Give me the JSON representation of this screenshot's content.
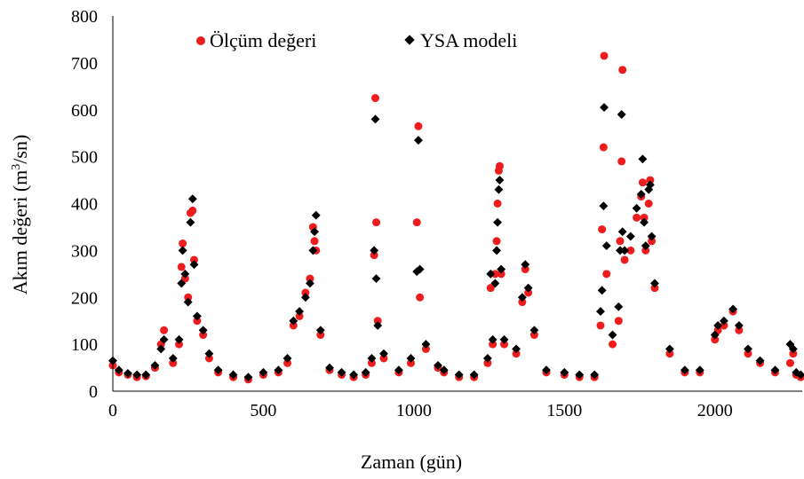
{
  "chart_data": {
    "type": "scatter",
    "title": "",
    "xlabel": "Zaman (gün)",
    "ylabel_main": "Akım değeri (m",
    "ylabel_sup": "3",
    "ylabel_tail": "/sn)",
    "xlim": [
      0,
      2290
    ],
    "ylim": [
      0,
      800
    ],
    "xticks": [
      0,
      500,
      1000,
      1500,
      2000
    ],
    "yticks": [
      0,
      100,
      200,
      300,
      400,
      500,
      600,
      700,
      800
    ],
    "grid": false,
    "legend_position": "top",
    "series": [
      {
        "name": "Ölçüm değeri",
        "marker": "circle",
        "color": "#ee1c1c",
        "points": [
          [
            0,
            55
          ],
          [
            20,
            40
          ],
          [
            50,
            35
          ],
          [
            80,
            30
          ],
          [
            110,
            32
          ],
          [
            140,
            50
          ],
          [
            160,
            100
          ],
          [
            170,
            130
          ],
          [
            200,
            60
          ],
          [
            220,
            100
          ],
          [
            228,
            265
          ],
          [
            232,
            315
          ],
          [
            240,
            240
          ],
          [
            250,
            200
          ],
          [
            258,
            380
          ],
          [
            265,
            385
          ],
          [
            270,
            280
          ],
          [
            280,
            150
          ],
          [
            300,
            120
          ],
          [
            320,
            70
          ],
          [
            350,
            40
          ],
          [
            400,
            30
          ],
          [
            450,
            25
          ],
          [
            500,
            35
          ],
          [
            550,
            40
          ],
          [
            580,
            60
          ],
          [
            600,
            140
          ],
          [
            620,
            160
          ],
          [
            640,
            210
          ],
          [
            655,
            240
          ],
          [
            665,
            350
          ],
          [
            670,
            320
          ],
          [
            675,
            300
          ],
          [
            690,
            120
          ],
          [
            720,
            45
          ],
          [
            760,
            35
          ],
          [
            800,
            30
          ],
          [
            840,
            35
          ],
          [
            860,
            60
          ],
          [
            868,
            290
          ],
          [
            872,
            625
          ],
          [
            875,
            360
          ],
          [
            880,
            150
          ],
          [
            900,
            70
          ],
          [
            950,
            40
          ],
          [
            990,
            60
          ],
          [
            1010,
            360
          ],
          [
            1015,
            565
          ],
          [
            1020,
            200
          ],
          [
            1040,
            90
          ],
          [
            1080,
            50
          ],
          [
            1100,
            40
          ],
          [
            1150,
            30
          ],
          [
            1200,
            30
          ],
          [
            1245,
            60
          ],
          [
            1255,
            220
          ],
          [
            1262,
            100
          ],
          [
            1270,
            250
          ],
          [
            1275,
            320
          ],
          [
            1278,
            400
          ],
          [
            1282,
            470
          ],
          [
            1285,
            480
          ],
          [
            1290,
            250
          ],
          [
            1300,
            100
          ],
          [
            1340,
            80
          ],
          [
            1360,
            190
          ],
          [
            1370,
            260
          ],
          [
            1380,
            210
          ],
          [
            1400,
            120
          ],
          [
            1440,
            40
          ],
          [
            1500,
            35
          ],
          [
            1550,
            30
          ],
          [
            1600,
            30
          ],
          [
            1620,
            140
          ],
          [
            1625,
            345
          ],
          [
            1630,
            520
          ],
          [
            1632,
            715
          ],
          [
            1640,
            250
          ],
          [
            1660,
            100
          ],
          [
            1680,
            150
          ],
          [
            1685,
            320
          ],
          [
            1690,
            490
          ],
          [
            1693,
            685
          ],
          [
            1700,
            280
          ],
          [
            1720,
            300
          ],
          [
            1740,
            370
          ],
          [
            1755,
            415
          ],
          [
            1760,
            445
          ],
          [
            1765,
            370
          ],
          [
            1770,
            300
          ],
          [
            1780,
            400
          ],
          [
            1785,
            450
          ],
          [
            1790,
            320
          ],
          [
            1800,
            220
          ],
          [
            1850,
            80
          ],
          [
            1900,
            40
          ],
          [
            1950,
            40
          ],
          [
            2000,
            110
          ],
          [
            2010,
            130
          ],
          [
            2030,
            140
          ],
          [
            2060,
            170
          ],
          [
            2080,
            130
          ],
          [
            2110,
            80
          ],
          [
            2150,
            60
          ],
          [
            2200,
            40
          ],
          [
            2250,
            60
          ],
          [
            2260,
            80
          ],
          [
            2270,
            35
          ],
          [
            2285,
            30
          ]
        ]
      },
      {
        "name": "YSA modeli",
        "marker": "diamond",
        "color": "#000000",
        "points": [
          [
            0,
            65
          ],
          [
            20,
            45
          ],
          [
            50,
            38
          ],
          [
            80,
            35
          ],
          [
            110,
            35
          ],
          [
            140,
            55
          ],
          [
            160,
            90
          ],
          [
            170,
            110
          ],
          [
            200,
            70
          ],
          [
            220,
            110
          ],
          [
            228,
            230
          ],
          [
            232,
            300
          ],
          [
            240,
            250
          ],
          [
            250,
            190
          ],
          [
            258,
            360
          ],
          [
            265,
            410
          ],
          [
            270,
            270
          ],
          [
            280,
            160
          ],
          [
            300,
            130
          ],
          [
            320,
            80
          ],
          [
            350,
            45
          ],
          [
            400,
            35
          ],
          [
            450,
            30
          ],
          [
            500,
            40
          ],
          [
            550,
            45
          ],
          [
            580,
            70
          ],
          [
            600,
            150
          ],
          [
            620,
            170
          ],
          [
            640,
            200
          ],
          [
            655,
            230
          ],
          [
            665,
            300
          ],
          [
            670,
            340
          ],
          [
            675,
            375
          ],
          [
            690,
            130
          ],
          [
            720,
            50
          ],
          [
            760,
            40
          ],
          [
            800,
            35
          ],
          [
            840,
            40
          ],
          [
            860,
            70
          ],
          [
            868,
            300
          ],
          [
            872,
            580
          ],
          [
            875,
            240
          ],
          [
            880,
            140
          ],
          [
            900,
            80
          ],
          [
            950,
            45
          ],
          [
            990,
            70
          ],
          [
            1010,
            255
          ],
          [
            1015,
            535
          ],
          [
            1020,
            260
          ],
          [
            1040,
            100
          ],
          [
            1080,
            55
          ],
          [
            1100,
            45
          ],
          [
            1150,
            35
          ],
          [
            1200,
            35
          ],
          [
            1245,
            70
          ],
          [
            1255,
            250
          ],
          [
            1262,
            110
          ],
          [
            1270,
            230
          ],
          [
            1275,
            300
          ],
          [
            1278,
            360
          ],
          [
            1282,
            430
          ],
          [
            1285,
            450
          ],
          [
            1290,
            260
          ],
          [
            1300,
            110
          ],
          [
            1340,
            90
          ],
          [
            1360,
            200
          ],
          [
            1370,
            270
          ],
          [
            1380,
            220
          ],
          [
            1400,
            130
          ],
          [
            1440,
            45
          ],
          [
            1500,
            40
          ],
          [
            1550,
            35
          ],
          [
            1600,
            35
          ],
          [
            1620,
            170
          ],
          [
            1625,
            215
          ],
          [
            1630,
            395
          ],
          [
            1632,
            605
          ],
          [
            1640,
            310
          ],
          [
            1660,
            120
          ],
          [
            1680,
            180
          ],
          [
            1685,
            300
          ],
          [
            1690,
            590
          ],
          [
            1693,
            340
          ],
          [
            1700,
            300
          ],
          [
            1720,
            330
          ],
          [
            1740,
            390
          ],
          [
            1755,
            420
          ],
          [
            1760,
            495
          ],
          [
            1765,
            360
          ],
          [
            1770,
            310
          ],
          [
            1780,
            430
          ],
          [
            1785,
            440
          ],
          [
            1790,
            330
          ],
          [
            1800,
            230
          ],
          [
            1850,
            90
          ],
          [
            1900,
            45
          ],
          [
            1950,
            45
          ],
          [
            2000,
            120
          ],
          [
            2010,
            140
          ],
          [
            2030,
            150
          ],
          [
            2060,
            175
          ],
          [
            2080,
            140
          ],
          [
            2110,
            90
          ],
          [
            2150,
            65
          ],
          [
            2200,
            45
          ],
          [
            2250,
            100
          ],
          [
            2260,
            90
          ],
          [
            2270,
            40
          ],
          [
            2285,
            35
          ]
        ]
      }
    ]
  }
}
